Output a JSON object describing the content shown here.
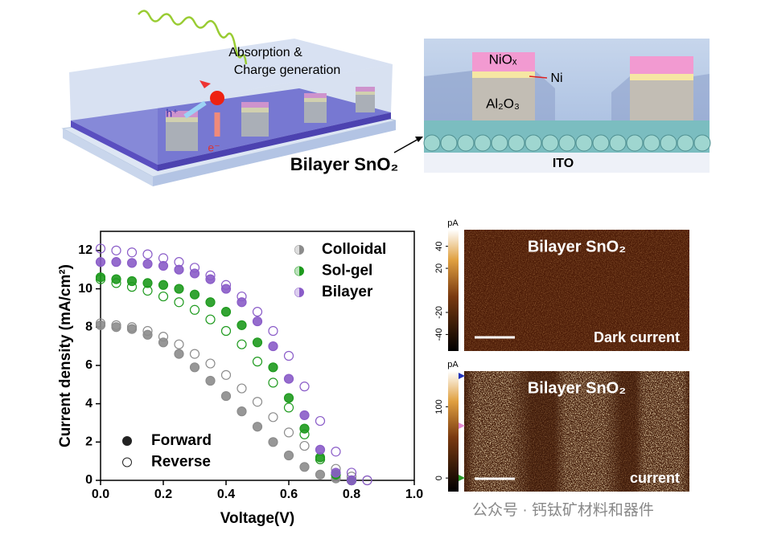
{
  "schematic": {
    "label_absorption": "Absorption &",
    "label_charge": "Charge generation",
    "hole": "h⁺",
    "electron": "e⁻",
    "layer_niox": "NiOₓ",
    "layer_ni": "Ni",
    "layer_al2o3": "Al₂O₃",
    "layer_sno2": "Bilayer SnO₂",
    "layer_ito": "ITO"
  },
  "chart_data": {
    "type": "scatter",
    "xlabel": "Voltage(V)",
    "ylabel": "Current density (mA/cm²)",
    "xlim": [
      0,
      1
    ],
    "ylim": [
      0,
      13
    ],
    "xticks": [
      {
        "value": 0,
        "label": "0.0"
      },
      0.2,
      0.4,
      0.6,
      0.8,
      {
        "value": 1,
        "label": "1.0"
      }
    ],
    "yticks": [
      0,
      2,
      4,
      6,
      8,
      10,
      12
    ],
    "scan_labels": {
      "forward": "Forward",
      "reverse": "Reverse"
    },
    "series": [
      {
        "name": "Colloidal",
        "color": "#8c8c8c",
        "forward": {
          "x": [
            0,
            0.05,
            0.1,
            0.15,
            0.2,
            0.25,
            0.3,
            0.35,
            0.4,
            0.45,
            0.5,
            0.55,
            0.6,
            0.65,
            0.7,
            0.75,
            0.8
          ],
          "values": [
            8.1,
            8.0,
            7.9,
            7.6,
            7.2,
            6.6,
            5.9,
            5.2,
            4.4,
            3.6,
            2.8,
            2.0,
            1.3,
            0.7,
            0.3,
            0.1,
            0
          ]
        },
        "reverse": {
          "x": [
            0,
            0.05,
            0.1,
            0.15,
            0.2,
            0.25,
            0.3,
            0.35,
            0.4,
            0.45,
            0.5,
            0.55,
            0.6,
            0.65,
            0.7,
            0.75,
            0.8,
            0.85
          ],
          "values": [
            8.2,
            8.1,
            8.0,
            7.8,
            7.5,
            7.1,
            6.6,
            6.1,
            5.5,
            4.8,
            4.1,
            3.3,
            2.5,
            1.8,
            1.1,
            0.6,
            0.2,
            0
          ]
        }
      },
      {
        "name": "Sol-gel",
        "color": "#1e9a1e",
        "forward": {
          "x": [
            0,
            0.05,
            0.1,
            0.15,
            0.2,
            0.25,
            0.3,
            0.35,
            0.4,
            0.45,
            0.5,
            0.55,
            0.6,
            0.65,
            0.7,
            0.75,
            0.8
          ],
          "values": [
            10.6,
            10.5,
            10.4,
            10.3,
            10.2,
            10.0,
            9.7,
            9.3,
            8.8,
            8.1,
            7.2,
            5.9,
            4.3,
            2.7,
            1.2,
            0.3,
            0
          ]
        },
        "reverse": {
          "x": [
            0,
            0.05,
            0.1,
            0.15,
            0.2,
            0.25,
            0.3,
            0.35,
            0.4,
            0.45,
            0.5,
            0.55,
            0.6,
            0.65,
            0.7,
            0.75,
            0.8
          ],
          "values": [
            10.5,
            10.3,
            10.1,
            9.9,
            9.6,
            9.3,
            8.9,
            8.4,
            7.8,
            7.1,
            6.2,
            5.1,
            3.8,
            2.4,
            1.1,
            0.3,
            0
          ]
        }
      },
      {
        "name": "Bilayer",
        "color": "#8a5cc8",
        "forward": {
          "x": [
            0,
            0.05,
            0.1,
            0.15,
            0.2,
            0.25,
            0.3,
            0.35,
            0.4,
            0.45,
            0.5,
            0.55,
            0.6,
            0.65,
            0.7,
            0.75,
            0.8
          ],
          "values": [
            11.4,
            11.4,
            11.35,
            11.3,
            11.2,
            11.0,
            10.8,
            10.5,
            10.0,
            9.3,
            8.3,
            7.0,
            5.3,
            3.4,
            1.6,
            0.4,
            0
          ]
        },
        "reverse": {
          "x": [
            0,
            0.05,
            0.1,
            0.15,
            0.2,
            0.25,
            0.3,
            0.35,
            0.4,
            0.45,
            0.5,
            0.55,
            0.6,
            0.65,
            0.7,
            0.75,
            0.8,
            0.85
          ],
          "values": [
            12.1,
            12.0,
            11.9,
            11.8,
            11.6,
            11.4,
            11.1,
            10.7,
            10.2,
            9.6,
            8.8,
            7.8,
            6.5,
            4.9,
            3.1,
            1.5,
            0.4,
            0
          ]
        }
      }
    ]
  },
  "maps": [
    {
      "title": "Bilayer SnO₂",
      "label": "Dark current",
      "colorbar_unit": "pA",
      "colorbar_lim": [
        -55,
        55
      ],
      "colorbar_ticks": [
        40,
        20,
        -20,
        -40
      ]
    },
    {
      "title": "Bilayer SnO₂",
      "label": "current",
      "colorbar_unit": "pA",
      "colorbar_lim": [
        -19,
        150
      ],
      "colorbar_ticks": [
        100,
        0
      ]
    }
  ],
  "watermark": "公众号 · 钙钛矿材料和器件"
}
